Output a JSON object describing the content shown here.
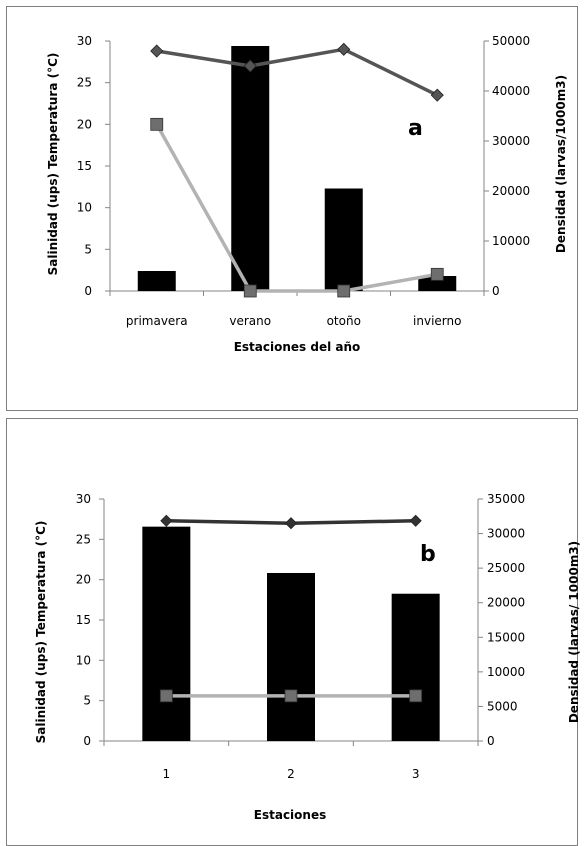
{
  "chart_data": [
    {
      "type": "bar",
      "panel_label": "a",
      "categories": [
        "primavera",
        "verano",
        "otoño",
        "invierno"
      ],
      "xlabel": "Estaciones del año",
      "ylabel_left": "Salinidad (ups) Temperatura (°C)",
      "ylabel_right": "Densidad (larvas/1000m3)",
      "ylim_left": [
        0,
        30
      ],
      "ylim_right": [
        0,
        50000
      ],
      "yticks_left": [
        "0",
        "5",
        "10",
        "15",
        "20",
        "25",
        "30"
      ],
      "yticks_right": [
        "0",
        "10000",
        "20000",
        "30000",
        "40000",
        "50000"
      ],
      "bars": {
        "axis": "right",
        "values": [
          4000,
          49000,
          20500,
          3000
        ],
        "color": "#000000"
      },
      "series": [
        {
          "axis": "left",
          "values": [
            28.8,
            27.0,
            29.0,
            23.5
          ],
          "color": "#555555",
          "marker": "diamond"
        },
        {
          "axis": "left",
          "values": [
            20.0,
            0.0,
            0.0,
            2.0
          ],
          "color": "#b3b3b3",
          "marker": "square"
        }
      ],
      "grid": false
    },
    {
      "type": "bar",
      "panel_label": "b",
      "categories": [
        "1",
        "2",
        "3"
      ],
      "xlabel": "Estaciones",
      "ylabel_left": "Salinidad (ups) Temperatura (°C)",
      "ylabel_right": "Densidad (larvas/ 1000m3)",
      "ylim_left": [
        0,
        30
      ],
      "ylim_right": [
        0,
        35000
      ],
      "yticks_left": [
        "0",
        "5",
        "10",
        "15",
        "20",
        "25",
        "30"
      ],
      "yticks_right": [
        "0",
        "5000",
        "10000",
        "15000",
        "20000",
        "25000",
        "30000",
        "35000"
      ],
      "bars": {
        "axis": "right",
        "values": [
          31000,
          24300,
          21300
        ],
        "color": "#000000"
      },
      "series": [
        {
          "axis": "left",
          "values": [
            27.3,
            27.0,
            27.3
          ],
          "color": "#333333",
          "marker": "diamond"
        },
        {
          "axis": "left",
          "values": [
            5.6,
            5.6,
            5.6
          ],
          "color": "#b3b3b3",
          "marker": "square"
        }
      ],
      "grid": false
    }
  ]
}
